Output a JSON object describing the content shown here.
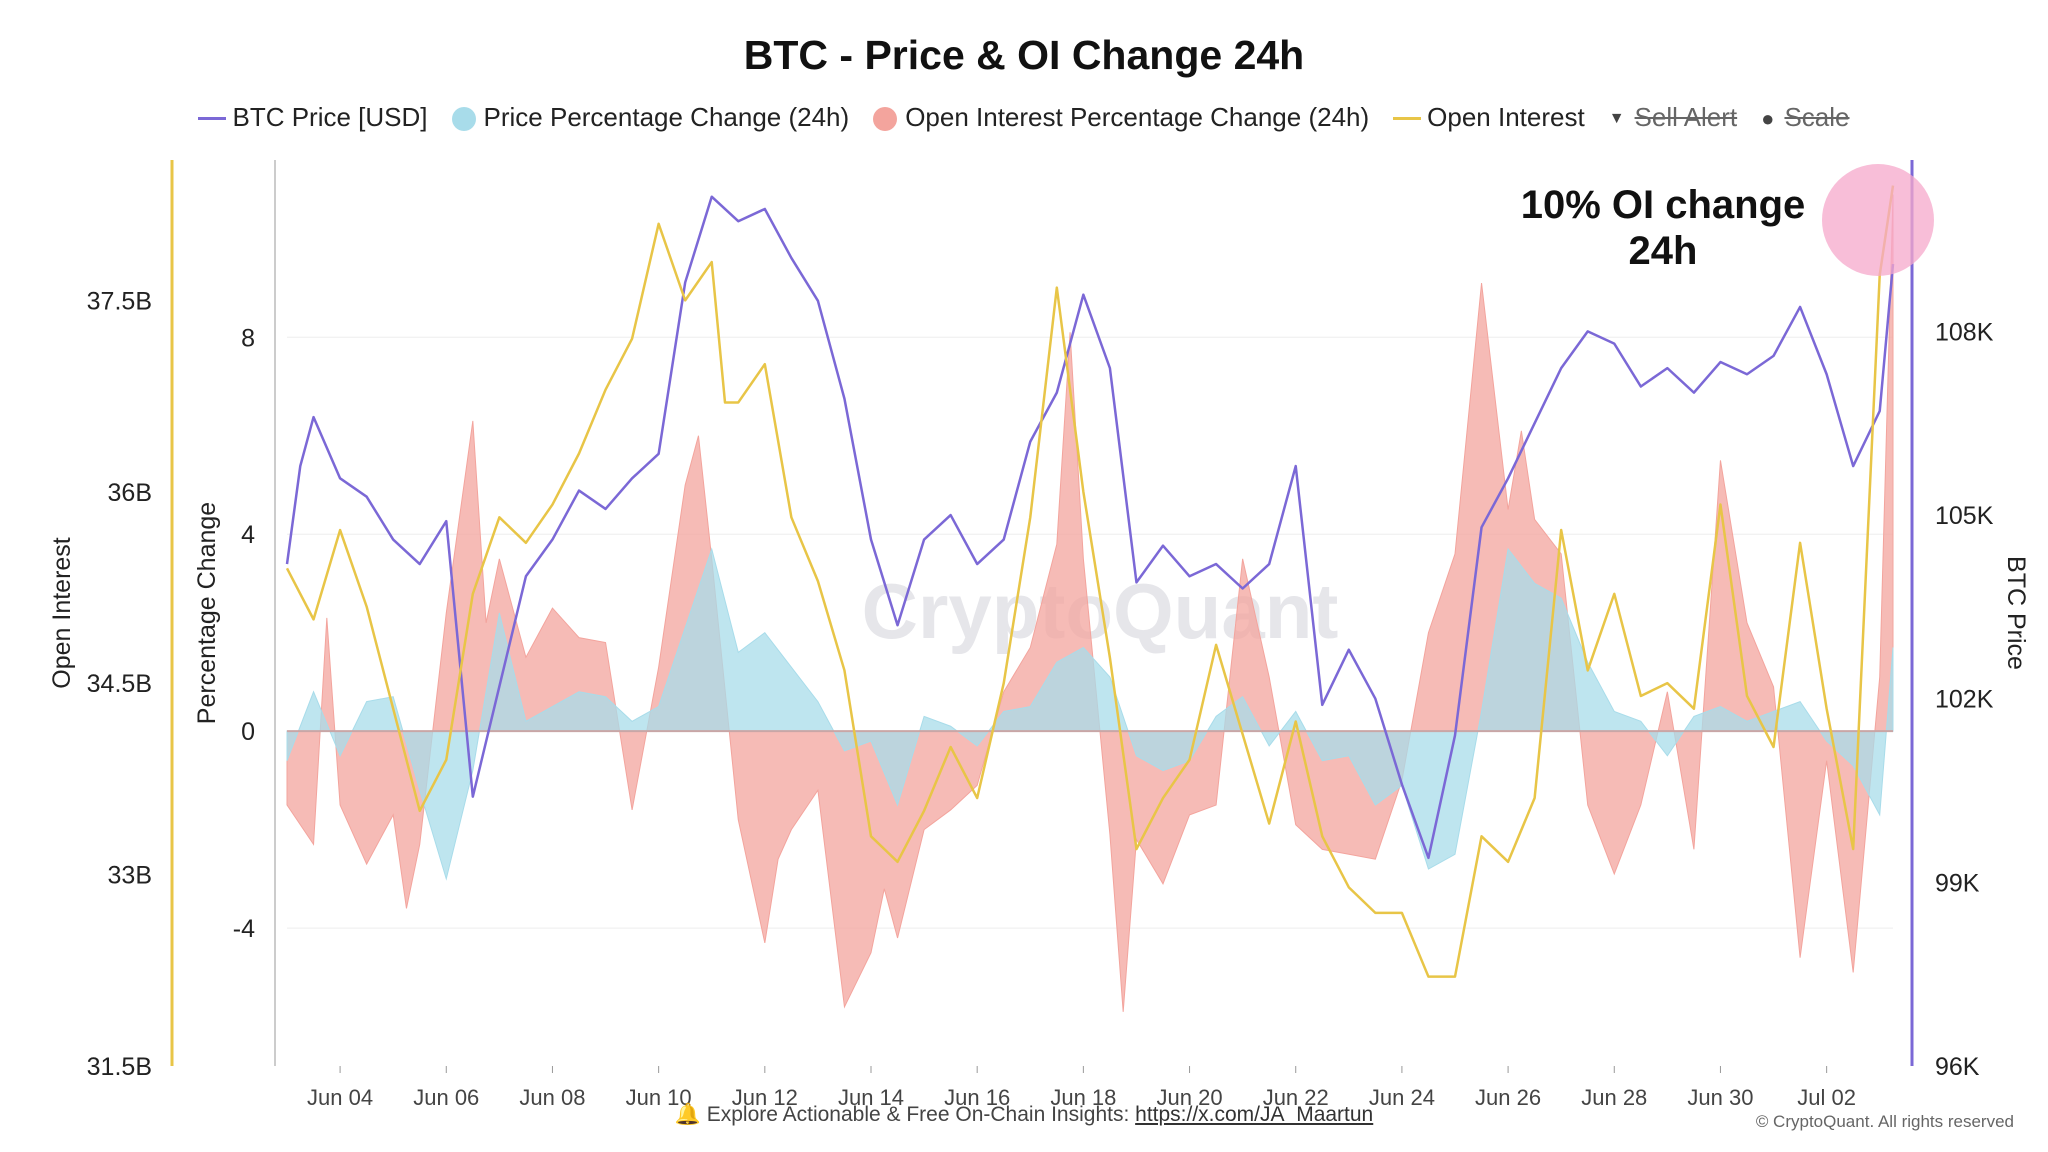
{
  "title": "BTC - Price & OI Change 24h",
  "legend": [
    {
      "label": "BTC Price [USD]",
      "kind": "line",
      "color": "#7b68d6",
      "strike": false
    },
    {
      "label": "Price Percentage Change (24h)",
      "kind": "dot",
      "color": "#a8dcea",
      "strike": false
    },
    {
      "label": "Open Interest Percentage Change (24h)",
      "kind": "dot",
      "color": "#f3a49d",
      "strike": false
    },
    {
      "label": "Open Interest",
      "kind": "line",
      "color": "#e8c547",
      "strike": false
    },
    {
      "label": "Sell Alert",
      "kind": "triangle",
      "color": "#555555",
      "strike": true
    },
    {
      "label": "Scale",
      "kind": "bullet",
      "color": "#555555",
      "strike": true
    }
  ],
  "annotation": {
    "line1": "10% OI change",
    "line2": "24h"
  },
  "watermark": "CryptoQuant",
  "footer": {
    "text": "Explore Actionable & Free On-Chain Insights:",
    "link": "https://x.com/JA_Maartun",
    "icon": "bell-icon"
  },
  "copyright": "© CryptoQuant. All rights reserved",
  "chart_data": {
    "type": "line",
    "x_ticks": [
      "Jun 04",
      "Jun 06",
      "Jun 08",
      "Jun 10",
      "Jun 12",
      "Jun 14",
      "Jun 16",
      "Jun 18",
      "Jun 20",
      "Jun 22",
      "Jun 24",
      "Jun 26",
      "Jun 28",
      "Jun 30",
      "Jul 02"
    ],
    "x_range": [
      "Jun 03 00:00",
      "Jul 03 06:00"
    ],
    "axes": {
      "open_interest": {
        "label": "Open Interest",
        "ticks": [
          "31.5B",
          "33B",
          "34.5B",
          "36B",
          "37.5B"
        ],
        "range": [
          31.5,
          38.6
        ],
        "unit": "B",
        "color": "#e8c547"
      },
      "percentage": {
        "label": "Percentage Change",
        "ticks": [
          "-4",
          "0",
          "4",
          "8"
        ],
        "range": [
          -6.8,
          11.6
        ]
      },
      "btc_price": {
        "label": "BTC Price",
        "ticks": [
          "96K",
          "99K",
          "102K",
          "105K",
          "108K"
        ],
        "range": [
          96000,
          110800
        ],
        "color": "#7b68d6"
      }
    },
    "series": [
      {
        "name": "BTC Price [USD]",
        "axis": "btc_price",
        "style": "line",
        "color": "#7b68d6",
        "x": [
          0,
          0.25,
          0.5,
          1,
          1.5,
          2,
          2.5,
          3,
          3.5,
          4,
          4.5,
          5,
          5.5,
          6,
          6.5,
          7,
          7.5,
          8,
          8.5,
          9,
          9.5,
          10,
          10.5,
          11,
          11.5,
          12,
          12.5,
          13,
          13.5,
          14,
          14.5,
          15,
          15.5,
          16,
          16.5,
          17,
          17.5,
          18,
          18.5,
          19,
          19.5,
          20,
          20.5,
          21,
          21.5,
          22,
          22.5,
          23,
          23.5,
          24,
          24.5,
          25,
          25.5,
          26,
          26.5,
          27,
          27.5,
          28,
          28.5,
          29,
          29.5,
          30,
          30.25
        ],
        "y": [
          104200,
          105800,
          106600,
          105600,
          105300,
          104600,
          104200,
          104900,
          100400,
          102200,
          104000,
          104600,
          105400,
          105100,
          105600,
          106000,
          108800,
          110200,
          109800,
          110000,
          109200,
          108500,
          106900,
          104600,
          103200,
          104600,
          105000,
          104200,
          104600,
          106200,
          107000,
          108600,
          107400,
          103900,
          104500,
          104000,
          104200,
          103800,
          104200,
          105800,
          101900,
          102800,
          102000,
          100600,
          99400,
          101400,
          104800,
          105600,
          106500,
          107400,
          108000,
          107800,
          107100,
          107400,
          107000,
          107500,
          107300,
          107600,
          108400,
          107300,
          105800,
          106700,
          109100
        ]
      },
      {
        "name": "Open Interest",
        "axis": "open_interest",
        "style": "line",
        "color": "#e8c547",
        "x": [
          0,
          0.5,
          1,
          1.5,
          2,
          2.5,
          3,
          3.5,
          4,
          4.5,
          5,
          5.5,
          6,
          6.5,
          7,
          7.5,
          8,
          8.25,
          8.5,
          9,
          9.5,
          10,
          10.5,
          11,
          11.5,
          12,
          12.5,
          13,
          13.5,
          14,
          14.5,
          15,
          15.5,
          16,
          16.5,
          17,
          17.5,
          18,
          18.5,
          19,
          19.5,
          20,
          20.5,
          21,
          21.5,
          22,
          22.5,
          23,
          23.5,
          24,
          24.5,
          25,
          25.5,
          26,
          26.5,
          27,
          27.5,
          28,
          28.5,
          29,
          29.5,
          30,
          30.25
        ],
        "y": [
          35.4,
          35,
          35.7,
          35.1,
          34.3,
          33.5,
          33.9,
          35.2,
          35.8,
          35.6,
          35.9,
          36.3,
          36.8,
          37.2,
          38.1,
          37.5,
          37.8,
          36.7,
          36.7,
          37,
          35.8,
          35.3,
          34.6,
          33.3,
          33.1,
          33.5,
          34,
          33.6,
          34.5,
          35.8,
          37.6,
          36,
          34.7,
          33.2,
          33.6,
          33.9,
          34.8,
          34.1,
          33.4,
          34.2,
          33.3,
          32.9,
          32.7,
          32.7,
          32.2,
          32.2,
          33.3,
          33.1,
          33.6,
          35.7,
          34.6,
          35.2,
          34.4,
          34.5,
          34.3,
          35.9,
          34.4,
          34,
          35.6,
          34.3,
          33.2,
          37.7,
          38.4
        ]
      },
      {
        "name": "Price Percentage Change (24h)",
        "axis": "percentage",
        "style": "area",
        "color": "#a8dcea",
        "x": [
          0,
          0.5,
          1,
          1.5,
          2,
          2.5,
          3,
          3.5,
          4,
          4.5,
          5,
          5.5,
          6,
          6.5,
          7,
          7.5,
          8,
          8.5,
          9,
          9.5,
          10,
          10.5,
          11,
          11.5,
          12,
          12.5,
          13,
          13.5,
          14,
          14.5,
          15,
          15.5,
          16,
          16.5,
          17,
          17.5,
          18,
          18.5,
          19,
          19.5,
          20,
          20.5,
          21,
          21.5,
          22,
          22.5,
          23,
          23.5,
          24,
          24.5,
          25,
          25.5,
          26,
          26.5,
          27,
          27.5,
          28,
          28.5,
          29,
          29.5,
          30,
          30.25
        ],
        "y": [
          -0.6,
          0.8,
          -0.5,
          0.6,
          0.7,
          -1.2,
          -3,
          -0.8,
          2.4,
          0.2,
          0.5,
          0.8,
          0.7,
          0.2,
          0.5,
          2.1,
          3.7,
          1.6,
          2,
          1.3,
          0.6,
          -0.4,
          -0.2,
          -1.5,
          0.3,
          0.1,
          -0.3,
          0.4,
          0.5,
          1.4,
          1.7,
          1.1,
          -0.5,
          -0.8,
          -0.6,
          0.3,
          0.7,
          -0.3,
          0.4,
          -0.6,
          -0.5,
          -1.5,
          -1.1,
          -2.8,
          -2.5,
          0.4,
          3.7,
          3,
          2.7,
          1.4,
          0.4,
          0.2,
          -0.5,
          0.3,
          0.5,
          0.2,
          0.4,
          0.6,
          -0.2,
          -0.7,
          -1.7,
          1.7
        ]
      },
      {
        "name": "Open Interest Percentage Change (24h)",
        "axis": "percentage",
        "style": "area",
        "color": "#f3a49d",
        "x": [
          0,
          0.5,
          0.75,
          1,
          1.5,
          2,
          2.25,
          2.5,
          3,
          3.5,
          3.75,
          4,
          4.5,
          5,
          5.5,
          6,
          6.5,
          7,
          7.5,
          7.75,
          8,
          8.5,
          9,
          9.25,
          9.5,
          10,
          10.5,
          11,
          11.25,
          11.5,
          12,
          12.5,
          13,
          13.5,
          14,
          14.5,
          14.75,
          15,
          15.5,
          15.75,
          16,
          16.5,
          17,
          17.5,
          18,
          18.5,
          19,
          19.5,
          20,
          20.5,
          21,
          21.5,
          22,
          22.5,
          23,
          23.25,
          23.5,
          24,
          24.5,
          25,
          25.5,
          26,
          26.5,
          27,
          27.5,
          28,
          28.5,
          29,
          29.5,
          30,
          30.25
        ],
        "y": [
          -1.5,
          -2.3,
          2.3,
          -1.5,
          -2.7,
          -1.7,
          -3.6,
          -2.3,
          2.4,
          6.3,
          2.2,
          3.5,
          1.5,
          2.5,
          1.9,
          1.8,
          -1.6,
          1.3,
          5,
          6,
          3.5,
          -1.8,
          -4.3,
          -2.6,
          -2,
          -1.2,
          -5.6,
          -4.5,
          -3.2,
          -4.2,
          -2,
          -1.6,
          -1.1,
          0.8,
          1.7,
          3.8,
          8.1,
          3.5,
          -2.1,
          -5.7,
          -2.2,
          -3.1,
          -1.7,
          -1.5,
          3.5,
          1.1,
          -1.9,
          -2.4,
          -2.5,
          -2.6,
          -1,
          2,
          3.6,
          9.1,
          4.5,
          6.1,
          4.3,
          3.6,
          -1.5,
          -2.9,
          -1.5,
          0.8,
          -2.4,
          5.5,
          2.2,
          0.9,
          -4.6,
          -0.6,
          -4.9,
          1.1,
          10.9
        ]
      }
    ]
  }
}
